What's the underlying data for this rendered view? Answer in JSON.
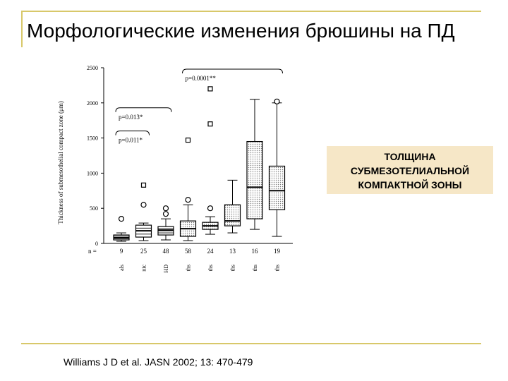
{
  "slide": {
    "title": "Морфологические изменения брюшины на ПД",
    "callout_lines": [
      "ТОЛЩИНА",
      "СУБМЕЗОТЕЛИАЛЬНОЙ",
      "КОМПАКТНОЙ ЗОНЫ"
    ],
    "citation": "Williams J D et al. JASN 2002; 13: 470-479",
    "accent_color": "#d8c86a",
    "callout_color": "#f6e7c7"
  },
  "chart_data": {
    "type": "box",
    "title": "",
    "xlabel": "",
    "ylabel": "Thickness of submesothelial compact zone (μm)",
    "ylim": [
      0,
      2500
    ],
    "yticks": [
      0,
      500,
      1000,
      1500,
      2000,
      2500
    ],
    "n_prefix": "n =",
    "groups": [
      {
        "n": "9",
        "label": "als",
        "q1": 50,
        "median": 80,
        "q3": 120,
        "whisker_low": 30,
        "whisker_high": 150,
        "outliers": [
          {
            "value": 350,
            "marker": "circle"
          }
        ],
        "shaded": false
      },
      {
        "n": "25",
        "label": "nic",
        "q1": 90,
        "median": 180,
        "q3": 260,
        "whisker_low": 40,
        "whisker_high": 290,
        "outliers": [
          {
            "value": 550,
            "marker": "circle"
          },
          {
            "value": 830,
            "marker": "square"
          }
        ],
        "shaded": false
      },
      {
        "n": "48",
        "label": "HD",
        "q1": 120,
        "median": 190,
        "q3": 240,
        "whisker_low": 50,
        "whisker_high": 350,
        "outliers": [
          {
            "value": 420,
            "marker": "circle"
          },
          {
            "value": 500,
            "marker": "circle"
          }
        ],
        "shaded": false
      },
      {
        "n": "58",
        "label": "ths",
        "q1": 100,
        "median": 210,
        "q3": 320,
        "whisker_low": 40,
        "whisker_high": 550,
        "outliers": [
          {
            "value": 620,
            "marker": "circle"
          },
          {
            "value": 1470,
            "marker": "square"
          }
        ],
        "shaded": true
      },
      {
        "n": "24",
        "label": "ths",
        "q1": 200,
        "median": 250,
        "q3": 300,
        "whisker_low": 130,
        "whisker_high": 380,
        "outliers": [
          {
            "value": 500,
            "marker": "circle"
          },
          {
            "value": 1700,
            "marker": "square"
          },
          {
            "value": 2200,
            "marker": "square"
          }
        ],
        "shaded": true
      },
      {
        "n": "13",
        "label": "ths",
        "q1": 250,
        "median": 320,
        "q3": 550,
        "whisker_low": 150,
        "whisker_high": 900,
        "outliers": [],
        "shaded": true
      },
      {
        "n": "16",
        "label": "ths",
        "q1": 350,
        "median": 800,
        "q3": 1450,
        "whisker_low": 200,
        "whisker_high": 2050,
        "outliers": [],
        "shaded": true
      },
      {
        "n": "19",
        "label": "ths",
        "q1": 480,
        "median": 750,
        "q3": 1100,
        "whisker_low": 100,
        "whisker_high": 2000,
        "outliers": [
          {
            "value": 2020,
            "marker": "circle"
          }
        ],
        "shaded": true
      }
    ],
    "annotations": [
      {
        "text": "p=0.011*",
        "from_group": 0,
        "to_group": 1,
        "level": 1600
      },
      {
        "text": "p=0.013*",
        "from_group": 0,
        "to_group": 2,
        "level": 1930
      },
      {
        "text": "p=0.0001**",
        "from_group": 3,
        "to_group": 7,
        "level": 2480
      }
    ]
  }
}
